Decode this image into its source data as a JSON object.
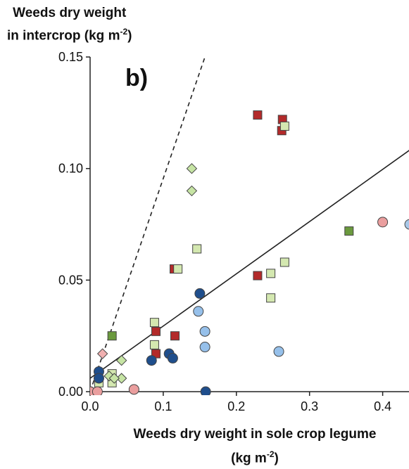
{
  "chart_data": {
    "type": "scatter",
    "panel_label": "b)",
    "ylabel_line1": "Weeds dry weight",
    "ylabel_line2": "in intercrop (kg m",
    "ylabel_sup": "-2",
    "ylabel_end": ")",
    "xlabel_line1": "Weeds dry weight in sole crop legume",
    "xlabel_line2_pre": "(kg m",
    "xlabel_line2_sup": "-2",
    "xlabel_line2_end": ")",
    "xlim": [
      0,
      0.44
    ],
    "ylim": [
      0,
      0.15
    ],
    "x_ticks": [
      0,
      0.1,
      0.2,
      0.3,
      0.4
    ],
    "x_tick_labels": [
      "0.0",
      "0.1",
      "0.2",
      "0.3",
      "0.4"
    ],
    "y_ticks": [
      0,
      0.05,
      0.1,
      0.15
    ],
    "y_tick_labels": [
      "0.00",
      "0.05",
      "0.10",
      "0.15"
    ],
    "grid": false,
    "reference_lines": [
      {
        "style": "dashed",
        "x": [
          0.0,
          0.157
        ],
        "y": [
          0.0,
          0.15
        ]
      },
      {
        "style": "solid",
        "x": [
          0.0,
          0.44
        ],
        "y": [
          0.006,
          0.109
        ]
      }
    ],
    "series": [
      {
        "marker": "square",
        "color": "#b32a2a",
        "points": [
          [
            0.229,
            0.124
          ],
          [
            0.263,
            0.122
          ],
          [
            0.262,
            0.117
          ],
          [
            0.115,
            0.055
          ],
          [
            0.229,
            0.052
          ],
          [
            0.09,
            0.027
          ],
          [
            0.09,
            0.017
          ],
          [
            0.116,
            0.025
          ]
        ]
      },
      {
        "marker": "square",
        "color": "#d4e8b0",
        "points": [
          [
            0.266,
            0.119
          ],
          [
            0.12,
            0.055
          ],
          [
            0.146,
            0.064
          ],
          [
            0.266,
            0.058
          ],
          [
            0.247,
            0.053
          ],
          [
            0.247,
            0.042
          ],
          [
            0.088,
            0.031
          ],
          [
            0.088,
            0.021
          ],
          [
            0.012,
            0.004
          ],
          [
            0.03,
            0.004
          ],
          [
            0.03,
            0.008
          ]
        ]
      },
      {
        "marker": "square",
        "color": "#6b9a3e",
        "points": [
          [
            0.354,
            0.072
          ],
          [
            0.03,
            0.025
          ]
        ]
      },
      {
        "marker": "diamond",
        "color": "#c6e4a4",
        "points": [
          [
            0.139,
            0.1
          ],
          [
            0.139,
            0.09
          ],
          [
            0.043,
            0.014
          ],
          [
            0.026,
            0.007
          ],
          [
            0.043,
            0.006
          ],
          [
            0.033,
            0.006
          ]
        ]
      },
      {
        "marker": "diamond",
        "color": "#f0b0b0",
        "points": [
          [
            0.017,
            0.017
          ]
        ]
      },
      {
        "marker": "circle",
        "color": "#1f4e8c",
        "points": [
          [
            0.15,
            0.044
          ],
          [
            0.108,
            0.017
          ],
          [
            0.113,
            0.015
          ],
          [
            0.084,
            0.014
          ],
          [
            0.012,
            0.009
          ],
          [
            0.012,
            0.006
          ],
          [
            0.158,
            0.0
          ]
        ]
      },
      {
        "marker": "circle",
        "color": "#96c0ea",
        "points": [
          [
            0.148,
            0.036
          ],
          [
            0.157,
            0.027
          ],
          [
            0.157,
            0.02
          ],
          [
            0.258,
            0.018
          ],
          [
            0.0,
            0.0
          ]
        ]
      },
      {
        "marker": "circle",
        "color": "#ea9e9e",
        "points": [
          [
            0.4,
            0.076
          ],
          [
            0.06,
            0.001
          ],
          [
            0.0,
            0.0
          ],
          [
            0.01,
            0.0
          ]
        ]
      },
      {
        "marker": "circle",
        "color": "#a8c8e8",
        "points": [
          [
            0.437,
            0.075
          ]
        ]
      }
    ]
  }
}
